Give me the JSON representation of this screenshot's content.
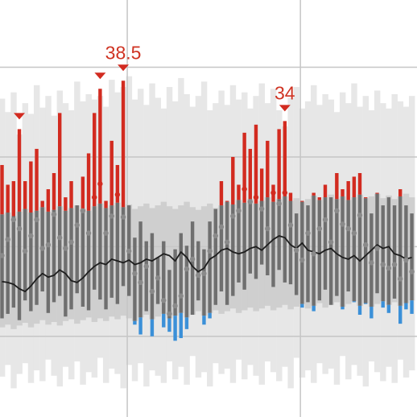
{
  "chart_data": {
    "type": "temperature-range",
    "ylim": [
      1,
      47.5
    ],
    "yticks": [
      10,
      20,
      30,
      40
    ],
    "xlim": [
      -0.35,
      71.9
    ],
    "xticks": [
      21.7,
      51.7
    ],
    "grid": true,
    "colors": {
      "bar": "#6f6f6f",
      "above": "#d22b20",
      "below": "#3b90d8",
      "dot": "#8a8a8a",
      "normal_band": "#cfcfcf",
      "record_band": "#e7e7e7",
      "normal_line": "#1e1e1e",
      "grid": "#c6c6c6",
      "label": "#cf3322"
    },
    "high": [
      29.1,
      26.9,
      27.3,
      33.1,
      27.3,
      29.5,
      30.9,
      25.1,
      26.4,
      28.2,
      34.9,
      25.5,
      27.3,
      24.6,
      27.8,
      30.4,
      34.9,
      37.6,
      25.1,
      31.8,
      29.1,
      38.5,
      24.6,
      21.0,
      22.8,
      20.6,
      21.5,
      18.8,
      20.6,
      17.4,
      19.7,
      21.5,
      20.1,
      22.8,
      20.6,
      19.7,
      22.8,
      24.2,
      27.3,
      25.1,
      30.0,
      26.9,
      32.7,
      30.9,
      33.6,
      28.7,
      31.8,
      26.9,
      33.1,
      34,
      26.0,
      23.7,
      25.1,
      24.6,
      26.0,
      25.5,
      26.9,
      25.5,
      28.2,
      26.4,
      27.3,
      27.8,
      28.2,
      25.5,
      23.7,
      26.0,
      24.6,
      25.5,
      24.6,
      26.4,
      24.6,
      23.7
    ],
    "low": [
      12.0,
      12.5,
      13.2,
      11.8,
      14.0,
      12.8,
      13.5,
      15.0,
      12.6,
      13.8,
      14.5,
      12.2,
      13.0,
      14.8,
      13.3,
      12.9,
      15.2,
      14.1,
      13.0,
      14.3,
      13.6,
      15.6,
      14.5,
      11.3,
      10.2,
      12.8,
      10.0,
      13.6,
      11.0,
      10.5,
      9.5,
      9.8,
      10.8,
      12.4,
      14.0,
      11.3,
      12.0,
      13.5,
      15.0,
      13.5,
      14.5,
      16.0,
      15.2,
      17.0,
      16.4,
      18.0,
      16.8,
      15.5,
      17.4,
      16.0,
      15.8,
      14.6,
      13.2,
      13.8,
      12.8,
      14.0,
      15.2,
      13.5,
      14.5,
      13.0,
      15.0,
      13.8,
      12.4,
      13.6,
      12.0,
      14.8,
      13.2,
      12.6,
      14.2,
      11.4,
      13.0,
      12.5
    ],
    "mean": [
      19.0,
      20.8,
      23.0,
      22.0,
      19.5,
      21.2,
      23.0,
      19.8,
      20.2,
      23.6,
      21.0,
      19.8,
      20.5,
      22.4,
      24.0,
      21.5,
      25.5,
      27.0,
      21.5,
      23.4,
      25.8,
      23.3,
      19.5,
      17.0,
      16.0,
      17.8,
      15.0,
      16.5,
      14.0,
      12.5,
      13.4,
      14.5,
      17.5,
      18.6,
      16.8,
      17.0,
      19.5,
      21.2,
      22.2,
      20.5,
      23.4,
      24.0,
      26.4,
      25.0,
      25.5,
      24.2,
      22.0,
      26.0,
      24.8,
      26.0,
      22.4,
      19.6,
      18.5,
      21.5,
      19.2,
      22.0,
      23.0,
      20.5,
      24.0,
      22.5,
      22.0,
      21.5,
      23.5,
      20.2,
      18.2,
      19.8,
      18.0,
      17.6,
      18.0,
      16.4,
      18.5,
      17.2
    ],
    "normal": [
      16.1,
      16.0,
      15.8,
      15.3,
      15.0,
      15.6,
      16.4,
      17.0,
      16.6,
      16.8,
      17.4,
      17.0,
      16.2,
      16.0,
      16.5,
      17.2,
      17.8,
      18.2,
      18.0,
      18.6,
      18.4,
      18.2,
      18.5,
      18.0,
      18.2,
      18.6,
      18.4,
      18.8,
      19.2,
      19.0,
      18.4,
      19.4,
      18.8,
      17.8,
      17.2,
      17.6,
      18.6,
      19.0,
      19.6,
      19.8,
      19.4,
      19.2,
      19.4,
      19.8,
      20.0,
      19.6,
      20.2,
      20.8,
      21.2,
      21.0,
      20.2,
      19.8,
      20.4,
      19.6,
      19.4,
      19.2,
      19.6,
      19.8,
      19.2,
      18.8,
      18.6,
      19.0,
      18.4,
      19.0,
      19.6,
      20.2,
      19.8,
      20.0,
      19.2,
      19.0,
      18.6,
      18.8
    ],
    "normal_high": [
      23.6,
      23.8,
      23.4,
      23.9,
      24.2,
      23.8,
      24.0,
      24.4,
      23.9,
      24.1,
      24.5,
      24.0,
      24.3,
      24.6,
      24.2,
      24.0,
      24.5,
      24.8,
      24.3,
      24.6,
      24.9,
      24.4,
      24.7,
      24.2,
      24.5,
      24.8,
      24.3,
      24.6,
      25.0,
      24.5,
      24.2,
      24.6,
      25.0,
      24.4,
      24.1,
      24.5,
      24.8,
      24.3,
      24.6,
      25.0,
      24.7,
      25.2,
      24.9,
      25.3,
      24.8,
      25.1,
      25.5,
      25.0,
      25.3,
      25.6,
      25.1,
      25.4,
      25.0,
      25.3,
      25.7,
      25.2,
      25.5,
      25.8,
      25.3,
      25.6,
      25.2,
      25.5,
      25.8,
      25.4,
      25.6,
      25.9,
      25.4,
      25.7,
      25.3,
      25.6,
      25.9,
      25.5
    ],
    "normal_low": [
      11.0,
      11.3,
      10.8,
      11.2,
      11.5,
      11.0,
      11.4,
      11.8,
      11.3,
      11.6,
      11.2,
      11.7,
      11.9,
      11.4,
      11.8,
      12.1,
      11.6,
      12.0,
      11.7,
      12.2,
      11.9,
      12.3,
      12.0,
      11.7,
      12.1,
      12.4,
      11.9,
      12.2,
      12.5,
      12.0,
      12.3,
      12.6,
      12.1,
      12.4,
      12.8,
      12.3,
      12.6,
      12.9,
      12.5,
      12.8,
      13.1,
      12.6,
      12.9,
      13.2,
      12.8,
      13.1,
      13.4,
      12.9,
      13.2,
      13.5,
      13.0,
      13.3,
      13.6,
      13.1,
      13.4,
      13.7,
      13.2,
      13.5,
      13.8,
      13.3,
      13.6,
      13.9,
      13.4,
      13.7,
      13.3,
      13.6,
      13.9,
      13.5,
      13.8,
      13.4,
      13.7,
      14.0
    ],
    "record_high": [
      36.5,
      35.0,
      37.2,
      32.5,
      36.0,
      34.8,
      38.0,
      35.5,
      36.8,
      34.6,
      37.4,
      36.0,
      35.2,
      38.4,
      36.2,
      37.0,
      36.4,
      36.8,
      35.6,
      38.6,
      37.2,
      37.8,
      39.0,
      36.4,
      37.6,
      35.8,
      38.2,
      36.6,
      35.4,
      37.8,
      36.2,
      38.8,
      37.0,
      35.6,
      36.8,
      38.4,
      35.2,
      36.0,
      37.4,
      35.8,
      38.0,
      36.4,
      37.2,
      35.4,
      36.8,
      38.2,
      36.0,
      37.6,
      35.2,
      33.4,
      36.6,
      37.8,
      35.4,
      36.2,
      38.0,
      35.8,
      37.0,
      36.4,
      35.0,
      37.2,
      36.0,
      38.2,
      35.6,
      36.8,
      35.2,
      37.4,
      36.0,
      35.4,
      37.0,
      36.2,
      35.6,
      36.8
    ],
    "record_low": [
      5.5,
      6.8,
      4.2,
      5.8,
      7.0,
      4.8,
      6.2,
      5.0,
      7.4,
      5.6,
      4.4,
      6.6,
      5.2,
      7.2,
      4.6,
      6.0,
      5.4,
      7.6,
      4.8,
      6.4,
      5.8,
      4.2,
      6.8,
      5.0,
      7.0,
      4.4,
      6.2,
      5.6,
      4.8,
      7.2,
      5.2,
      6.6,
      4.6,
      7.8,
      5.4,
      6.0,
      4.4,
      7.0,
      5.8,
      6.4,
      4.8,
      7.4,
      5.2,
      6.8,
      5.6,
      4.6,
      7.2,
      6.0,
      5.0,
      6.6,
      4.2,
      7.6,
      5.4,
      6.2,
      4.8,
      7.0,
      5.8,
      6.4,
      4.6,
      7.8,
      5.2,
      6.8,
      5.6,
      4.4,
      7.2,
      6.0,
      5.0,
      6.6,
      4.8,
      7.4,
      5.4,
      6.2
    ]
  }
}
